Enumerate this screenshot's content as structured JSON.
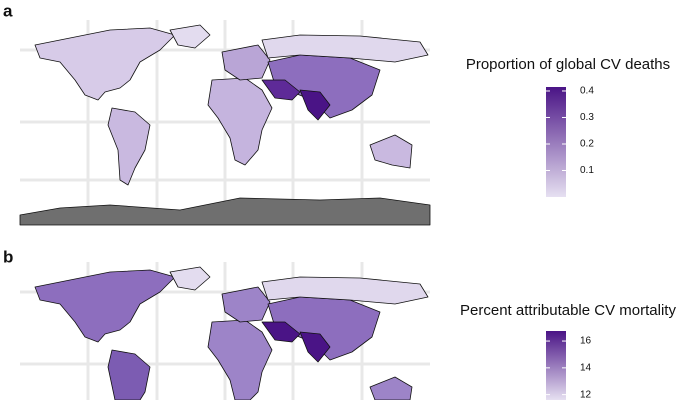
{
  "panels": [
    {
      "label": "a",
      "legend": {
        "title": "Proportion of global CV deaths",
        "lim": [
          0,
          0.415
        ],
        "ticks": [
          0.1,
          0.2,
          0.3,
          0.4
        ],
        "colors": [
          "#e6e0f1",
          "#4a1486"
        ]
      }
    },
    {
      "label": "b",
      "legend": {
        "title": "Percent attributable CV mortality",
        "lim": [
          11.6,
          16.75
        ],
        "ticks": [
          12,
          14,
          16
        ],
        "colors": [
          "#e6e0f1",
          "#4a1486"
        ]
      }
    }
  ]
}
